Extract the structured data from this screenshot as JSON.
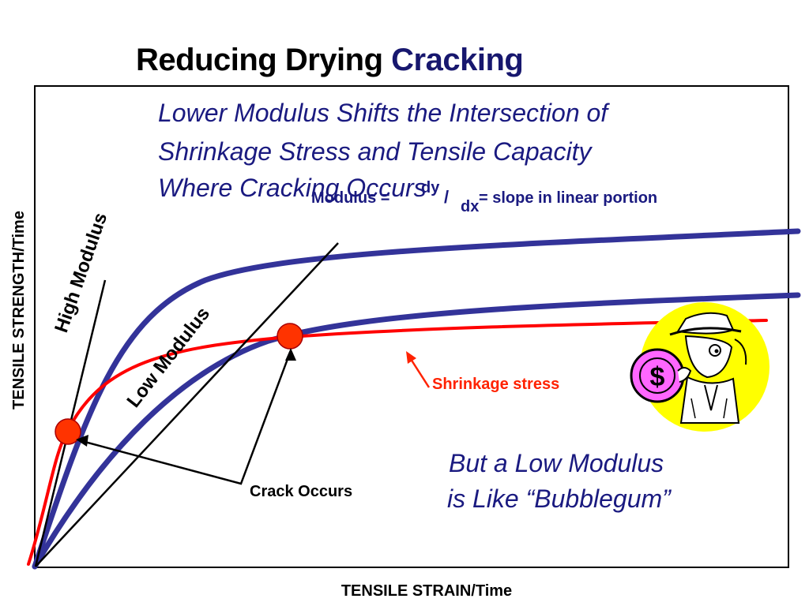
{
  "title": {
    "main": "Reducing Drying",
    "accent": "Cracking"
  },
  "subtitle_lines": [
    "Lower Modulus Shifts the Intersection of",
    "Shrinkage Stress and Tensile Capacity",
    "Where Cracking Occurs"
  ],
  "modulus_note": {
    "prefix": "Modulus =",
    "numerator": "dy",
    "slash": "/",
    "denominator": "dx",
    "suffix": "= slope in linear portion"
  },
  "labels": {
    "high_modulus": "High Modulus",
    "low_modulus": "Low Modulus",
    "shrinkage_stress": "Shrinkage stress",
    "crack_occurs": "Crack Occurs"
  },
  "bubblegum_lines": [
    "But a Low Modulus",
    "is Like “Bubblegum”"
  ],
  "axes": {
    "y_label": "TENSILE STRENGTH/Time",
    "x_label": "TENSILE STRAIN/Time"
  },
  "icon": {
    "dollar": "$"
  },
  "colors": {
    "title_accent": "#17176e",
    "curve_blue": "#333399",
    "curve_red": "#ff0000",
    "marker": "#ff3300",
    "text_blue": "#1a1a80",
    "label_red": "#ff2200",
    "yellow": "#ffff00",
    "coin": "#ff66ff"
  }
}
